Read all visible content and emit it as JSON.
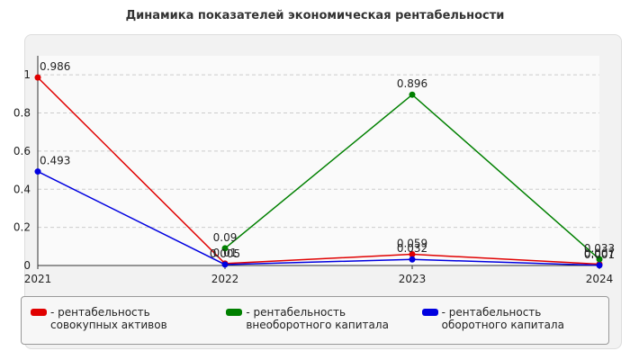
{
  "chart_data": {
    "type": "line",
    "title": "Динамика показателей экономическая рентабельности",
    "categories": [
      "2021",
      "2022",
      "2023",
      "2024"
    ],
    "series": [
      {
        "name": "- рентабельность совокупных активов",
        "color": "#e00000",
        "values": [
          0.986,
          0.01,
          0.059,
          0.007
        ]
      },
      {
        "name": "- рентабельность внеоборотного капитала",
        "color": "#008000",
        "values": [
          null,
          0.09,
          0.896,
          0.033
        ]
      },
      {
        "name": "- рентабельность оборотного капитала",
        "color": "#0000e0",
        "values": [
          0.493,
          0.005,
          0.032,
          0.001
        ]
      }
    ],
    "ylim": [
      0,
      1.1
    ],
    "yticks": [
      0,
      0.2,
      0.4,
      0.6,
      0.8,
      1
    ],
    "grid": true
  }
}
